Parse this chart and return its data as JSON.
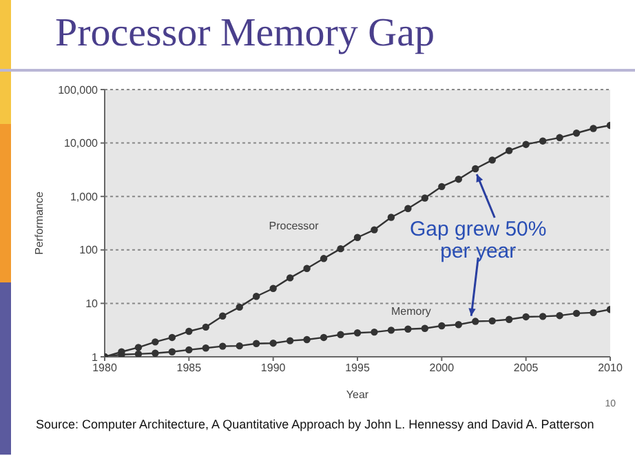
{
  "chart_data": {
    "type": "line",
    "title": "Processor Memory Gap",
    "xlabel": "Year",
    "ylabel": "Performance",
    "x": [
      1980,
      1981,
      1982,
      1983,
      1984,
      1985,
      1986,
      1987,
      1988,
      1989,
      1990,
      1991,
      1992,
      1993,
      1994,
      1995,
      1996,
      1997,
      1998,
      1999,
      2000,
      2001,
      2002,
      2003,
      2004,
      2005,
      2006,
      2007,
      2008,
      2009,
      2010
    ],
    "series": [
      {
        "name": "Processor",
        "color": "#333333",
        "values": [
          1,
          1.24,
          1.5,
          1.9,
          2.3,
          3.0,
          3.6,
          5.8,
          8.5,
          13.5,
          19,
          30,
          45,
          69,
          105,
          171,
          238,
          407,
          594,
          935,
          1530,
          2100,
          3300,
          4800,
          7200,
          9400,
          10900,
          12600,
          15300,
          18700,
          21400
        ]
      },
      {
        "name": "Memory",
        "color": "#333333",
        "values": [
          1,
          1.1,
          1.13,
          1.17,
          1.24,
          1.35,
          1.46,
          1.58,
          1.6,
          1.77,
          1.8,
          2.0,
          2.1,
          2.3,
          2.6,
          2.8,
          2.9,
          3.15,
          3.3,
          3.4,
          3.8,
          4.0,
          4.6,
          4.7,
          5.0,
          5.6,
          5.7,
          5.9,
          6.5,
          6.7,
          7.7
        ]
      }
    ],
    "xlim": [
      1980,
      2010
    ],
    "xticks": [
      1980,
      1985,
      1990,
      1995,
      2000,
      2005,
      2010
    ],
    "ylim": [
      1,
      100000
    ],
    "yticks": [
      1,
      10,
      {
        "value": 100,
        "label": "100"
      },
      {
        "value": 1000,
        "label": "1,000"
      },
      {
        "value": 10000,
        "label": "10,000"
      },
      {
        "value": 100000,
        "label": "100,000"
      }
    ],
    "log": "y",
    "grid": "y",
    "legend": false,
    "marker": "circle",
    "line_style": "solid",
    "annotations": [
      {
        "text": "Gap grew 50% per year"
      },
      "10",
      "Source: Computer Architecture, A Quantitative Approach by John L. Hennessy and David A. Patterson"
    ]
  }
}
